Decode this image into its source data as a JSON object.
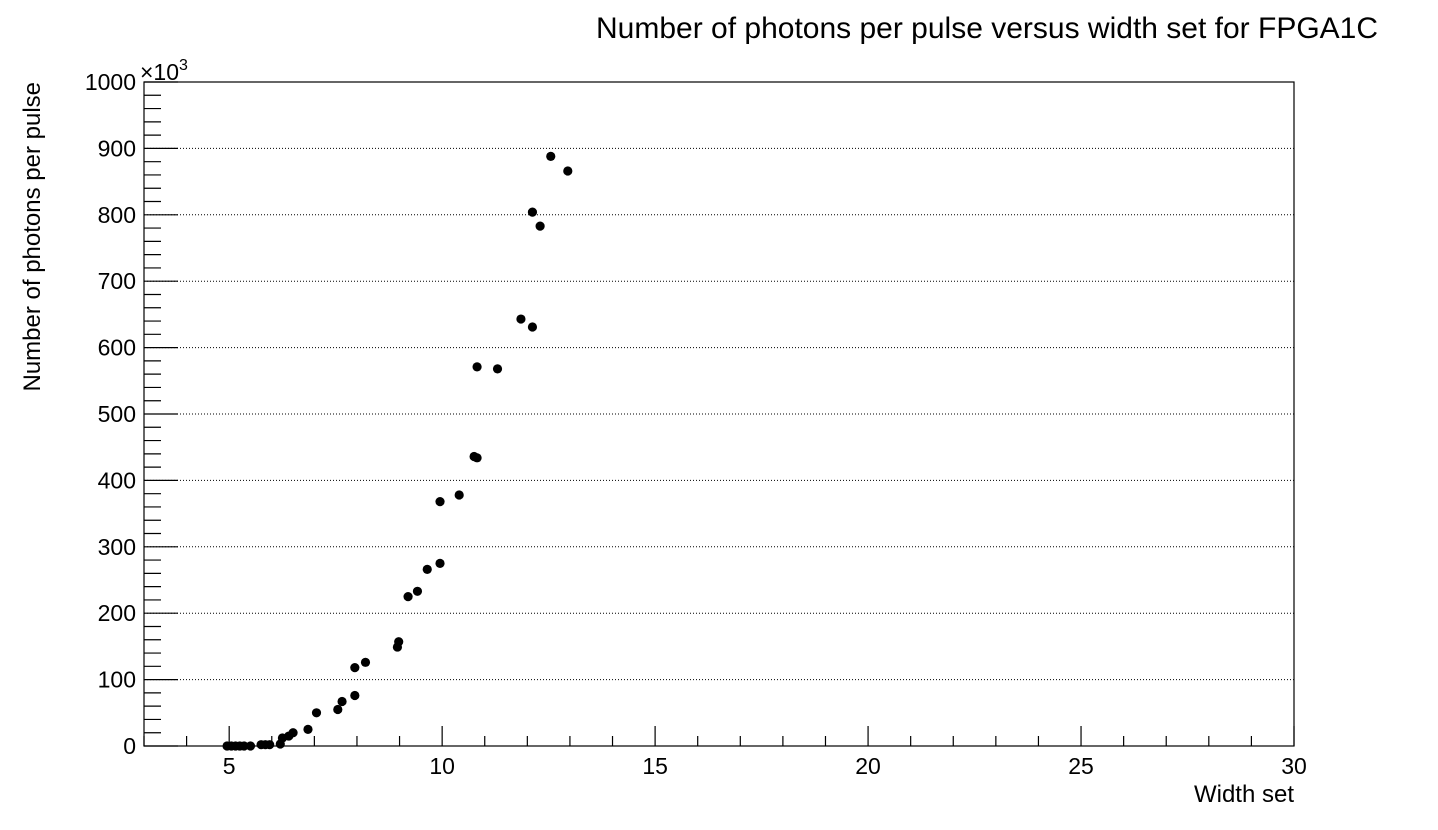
{
  "chart_data": {
    "type": "scatter",
    "title": "Number of photons per pulse versus width set for FPGA1C",
    "xlabel": "Width set",
    "ylabel": "Number of photons per pulse",
    "y_multiplier": {
      "prefix": "×10",
      "exponent": "3"
    },
    "xlim": [
      3,
      30
    ],
    "ylim": [
      0,
      1000
    ],
    "x_ticks": [
      5,
      10,
      15,
      20,
      25,
      30
    ],
    "x_tick_labels": [
      "5",
      "10",
      "15",
      "20",
      "25",
      "30"
    ],
    "y_ticks": [
      0,
      100,
      200,
      300,
      400,
      500,
      600,
      700,
      800,
      900,
      1000
    ],
    "y_tick_labels": [
      "0",
      "100",
      "200",
      "300",
      "400",
      "500",
      "600",
      "700",
      "800",
      "900",
      "1000"
    ],
    "grid": {
      "x": false,
      "y": true
    },
    "series": [
      {
        "color": "#000000",
        "marker": "circle",
        "points": [
          {
            "x": 4.95,
            "y": 0
          },
          {
            "x": 5.05,
            "y": 0
          },
          {
            "x": 5.15,
            "y": 0
          },
          {
            "x": 5.25,
            "y": 0
          },
          {
            "x": 5.35,
            "y": 0
          },
          {
            "x": 5.5,
            "y": 0
          },
          {
            "x": 5.75,
            "y": 2
          },
          {
            "x": 5.85,
            "y": 2
          },
          {
            "x": 5.95,
            "y": 2
          },
          {
            "x": 6.2,
            "y": 3
          },
          {
            "x": 6.25,
            "y": 12
          },
          {
            "x": 6.4,
            "y": 15
          },
          {
            "x": 6.5,
            "y": 20
          },
          {
            "x": 6.85,
            "y": 25
          },
          {
            "x": 7.05,
            "y": 50
          },
          {
            "x": 7.55,
            "y": 55
          },
          {
            "x": 7.65,
            "y": 67
          },
          {
            "x": 7.95,
            "y": 76
          },
          {
            "x": 7.95,
            "y": 118
          },
          {
            "x": 8.2,
            "y": 126
          },
          {
            "x": 8.95,
            "y": 149
          },
          {
            "x": 8.98,
            "y": 157
          },
          {
            "x": 9.2,
            "y": 225
          },
          {
            "x": 9.42,
            "y": 233
          },
          {
            "x": 9.65,
            "y": 266
          },
          {
            "x": 9.95,
            "y": 275
          },
          {
            "x": 9.95,
            "y": 368
          },
          {
            "x": 10.4,
            "y": 378
          },
          {
            "x": 10.75,
            "y": 436
          },
          {
            "x": 10.82,
            "y": 434
          },
          {
            "x": 10.82,
            "y": 571
          },
          {
            "x": 11.3,
            "y": 568
          },
          {
            "x": 11.85,
            "y": 643
          },
          {
            "x": 12.12,
            "y": 631
          },
          {
            "x": 12.12,
            "y": 804
          },
          {
            "x": 12.3,
            "y": 783
          },
          {
            "x": 12.55,
            "y": 888
          },
          {
            "x": 12.95,
            "y": 866
          }
        ]
      }
    ]
  }
}
